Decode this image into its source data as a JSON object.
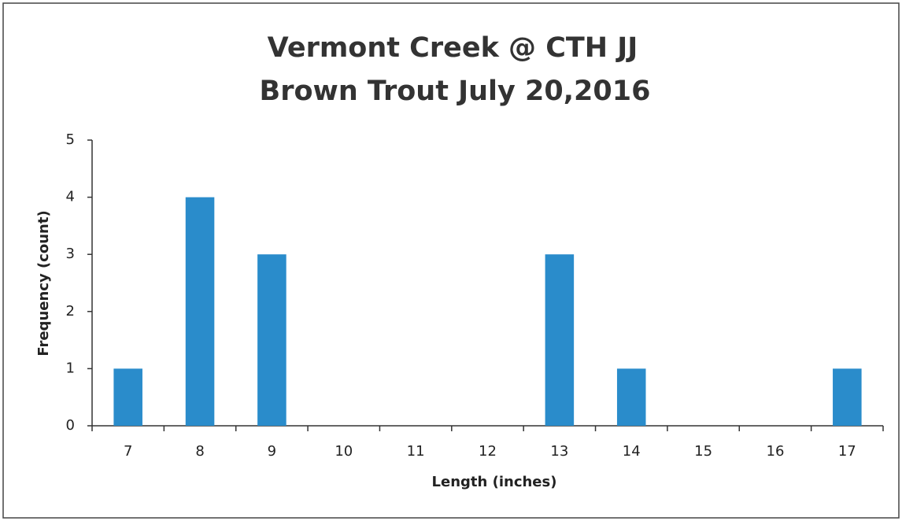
{
  "chart_data": {
    "type": "bar",
    "title": [
      "Vermont Creek @ CTH JJ",
      "Brown Trout July 20,2016"
    ],
    "x_label": "Length (inches)",
    "y_label": "Frequency (count)",
    "categories": [
      "7",
      "8",
      "9",
      "10",
      "11",
      "12",
      "13",
      "14",
      "15",
      "16",
      "17"
    ],
    "values": [
      1,
      4,
      3,
      0,
      0,
      0,
      3,
      1,
      0,
      0,
      1
    ],
    "color": "#2a8ccb",
    "ylim": [
      0,
      5
    ],
    "yticks": [
      0,
      1,
      2,
      3,
      4,
      5
    ],
    "grid": false
  }
}
